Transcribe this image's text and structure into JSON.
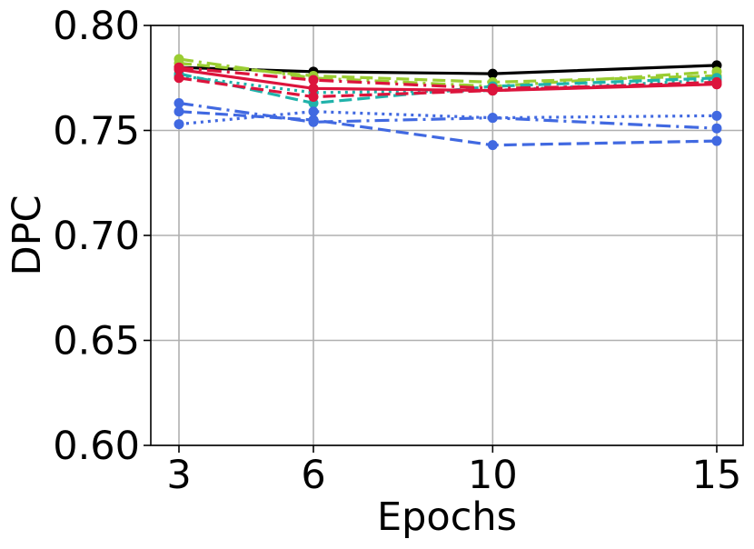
{
  "chart_data": {
    "type": "line",
    "title": "",
    "xlabel": "Epochs",
    "ylabel": "DPC",
    "x": [
      3,
      6,
      10,
      15
    ],
    "x_tick_labels": [
      "3",
      "6",
      "10",
      "15"
    ],
    "ylim": [
      0.6,
      0.8
    ],
    "y_ticks": [
      0.6,
      0.65,
      0.7,
      0.75,
      0.8
    ],
    "y_tick_labels": [
      "0.60",
      "0.65",
      "0.70",
      "0.75",
      "0.80"
    ],
    "grid": true,
    "legend": "none",
    "series": [
      {
        "color": "#000000",
        "dash": "solid",
        "values": [
          0.78,
          0.778,
          0.777,
          0.781
        ]
      },
      {
        "color": "#9acd32",
        "dash": "dashdot",
        "values": [
          0.784,
          0.775,
          0.771,
          0.778
        ]
      },
      {
        "color": "#9acd32",
        "dash": "dashed",
        "values": [
          0.782,
          0.776,
          0.773,
          0.776
        ]
      },
      {
        "color": "#20b2aa",
        "dash": "dashed",
        "values": [
          0.777,
          0.763,
          0.771,
          0.775
        ]
      },
      {
        "color": "#20b2aa",
        "dash": "dotted",
        "values": [
          0.776,
          0.768,
          0.769,
          0.774
        ]
      },
      {
        "color": "#dc143c",
        "dash": "dashdot",
        "values": [
          0.78,
          0.774,
          0.77,
          0.772
        ]
      },
      {
        "color": "#dc143c",
        "dash": "solid",
        "values": [
          0.779,
          0.77,
          0.769,
          0.772
        ]
      },
      {
        "color": "#dc143c",
        "dash": "dashed",
        "values": [
          0.775,
          0.766,
          0.769,
          0.773
        ]
      },
      {
        "color": "#4169e1",
        "dash": "dashed",
        "values": [
          0.759,
          0.755,
          0.743,
          0.745
        ]
      },
      {
        "color": "#4169e1",
        "dash": "dotted",
        "values": [
          0.753,
          0.759,
          0.756,
          0.757
        ]
      },
      {
        "color": "#4169e1",
        "dash": "dashdot",
        "values": [
          0.763,
          0.754,
          0.756,
          0.751
        ]
      }
    ]
  }
}
